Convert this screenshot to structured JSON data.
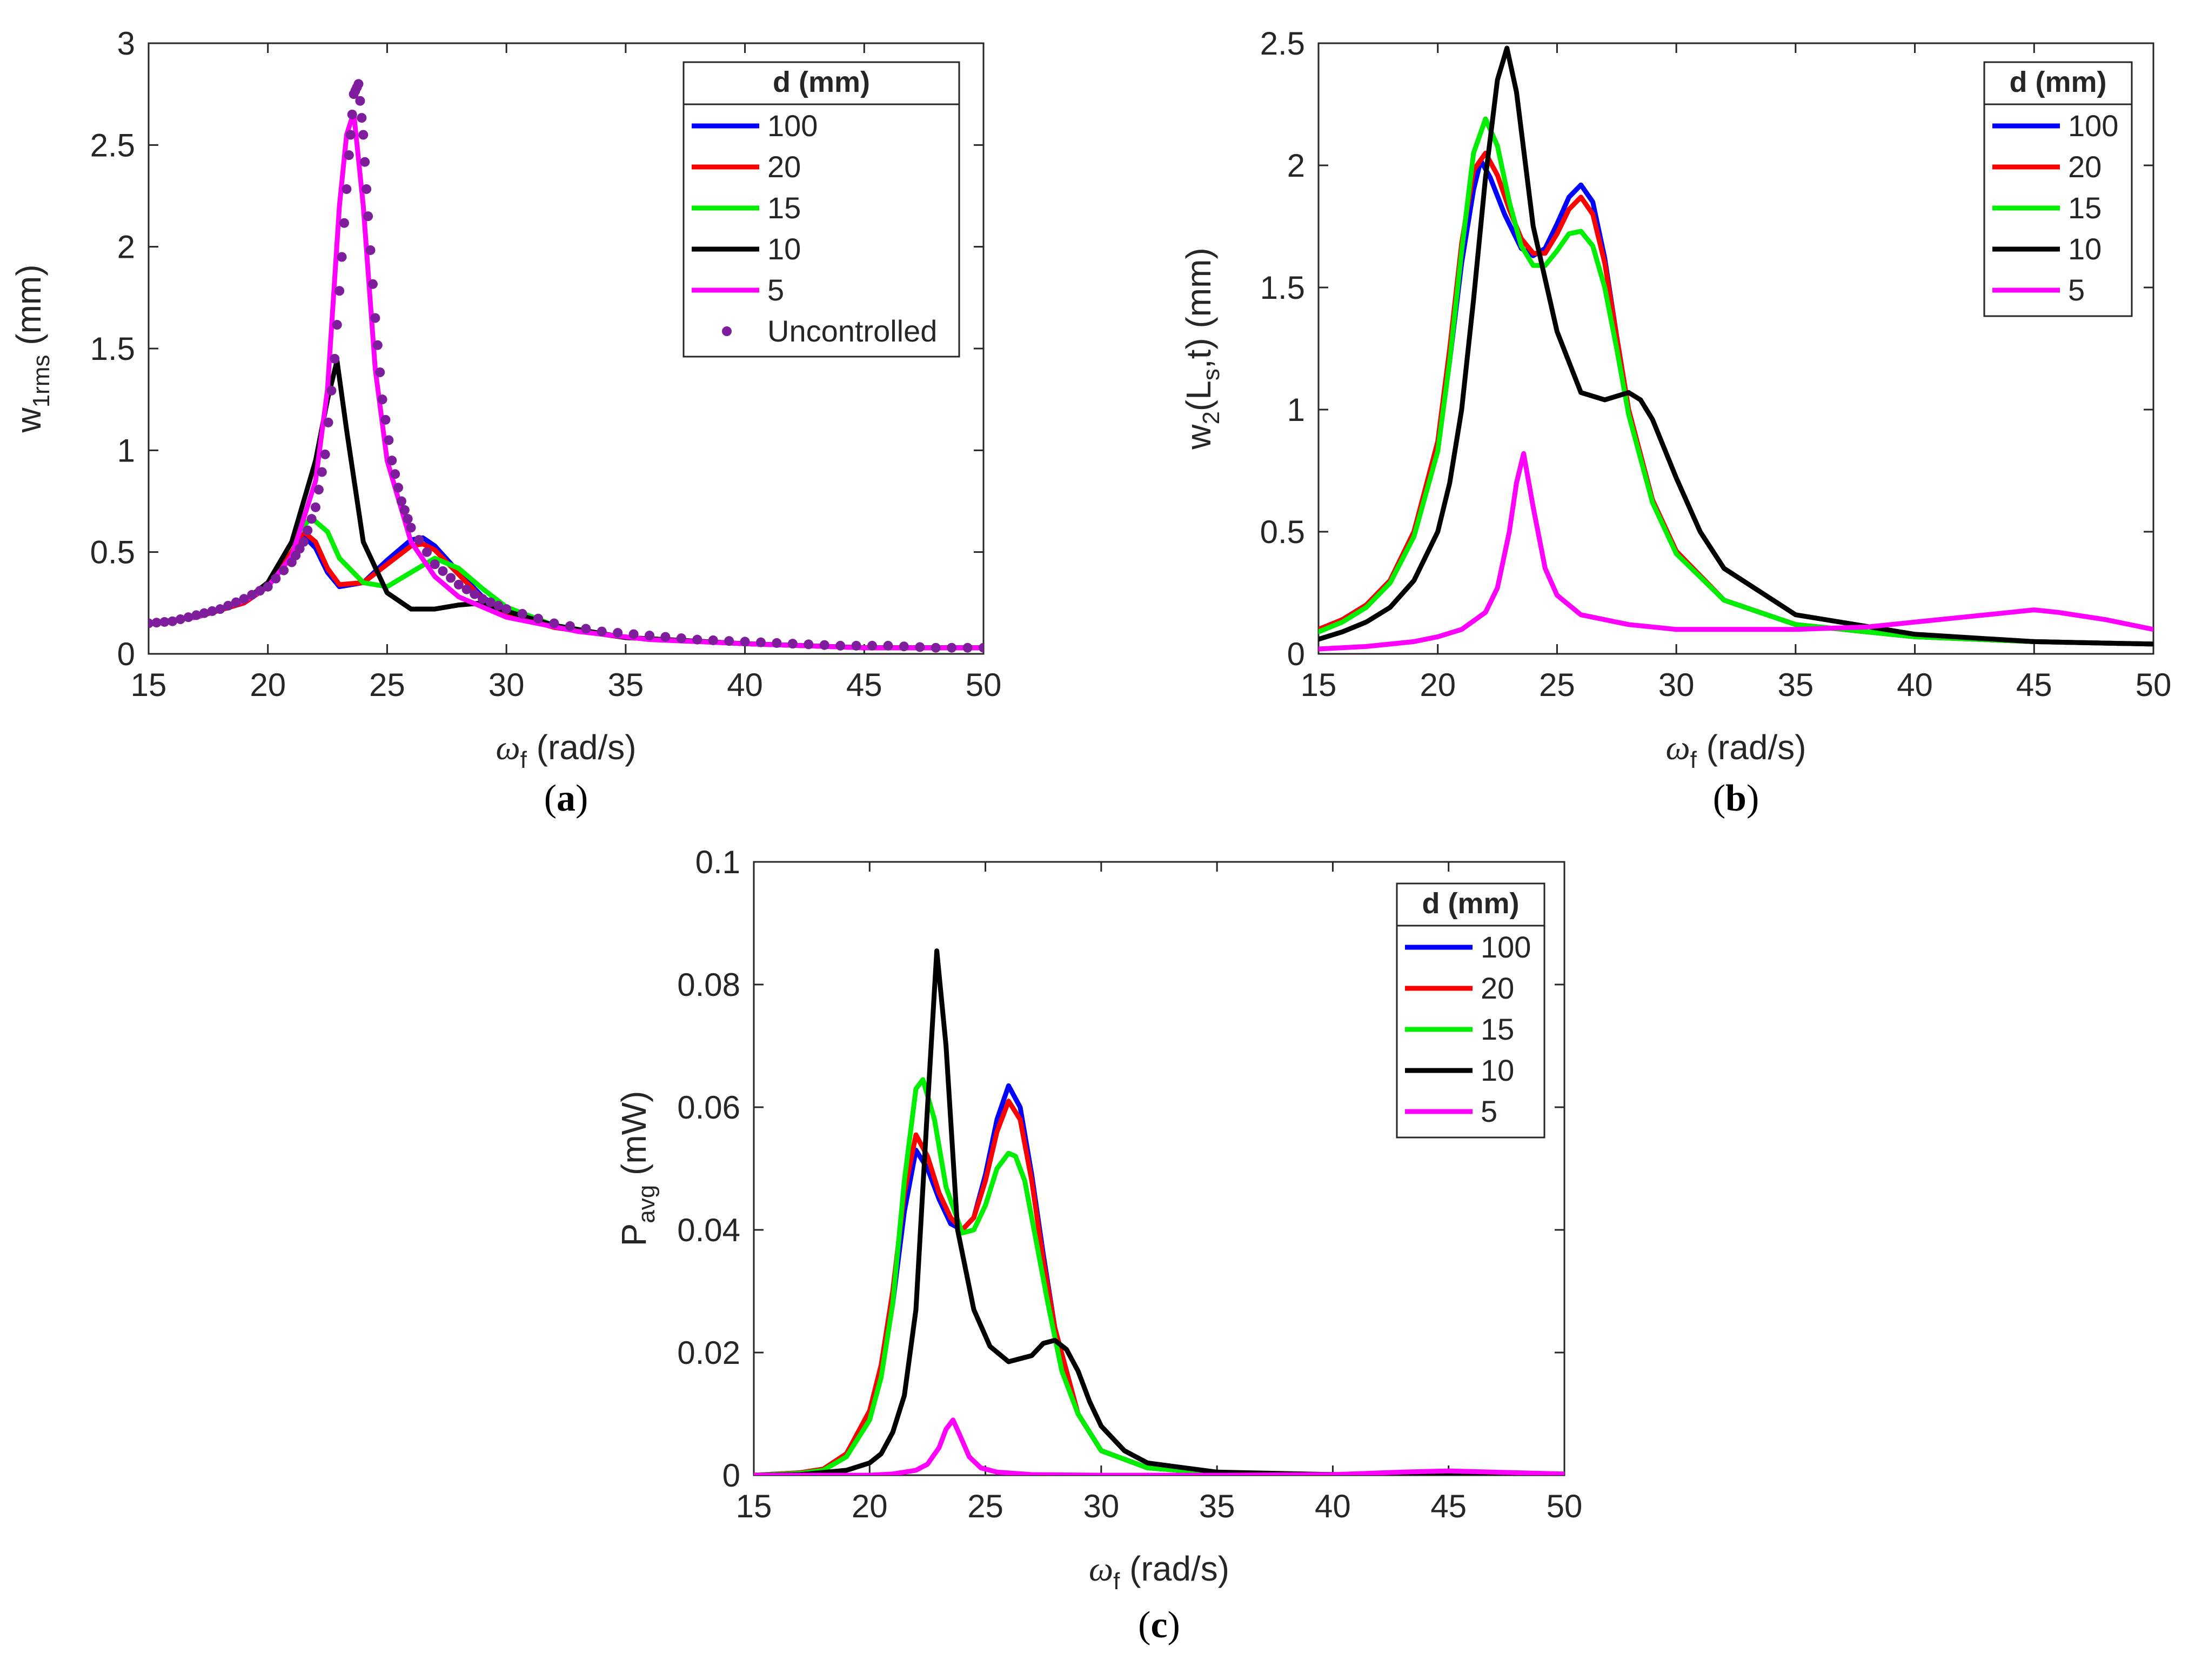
{
  "chart_data": [
    {
      "id": "a",
      "type": "line",
      "panel_label": "a",
      "xlabel_symbol": "ω",
      "xlabel_sub": "f",
      "xlabel_rest": " (rad/s)",
      "ylabel_main": "w",
      "ylabel_sub": "1rms",
      "ylabel_rest": " (mm)",
      "xlim": [
        15,
        50
      ],
      "ylim": [
        0,
        3
      ],
      "xticks": [
        "15",
        "20",
        "25",
        "30",
        "35",
        "40",
        "45",
        "50"
      ],
      "yticks": [
        "0",
        "0.5",
        "1",
        "1.5",
        "2",
        "2.5",
        "3"
      ],
      "legend": {
        "title": "d (mm)",
        "position": "top-right"
      },
      "series": [
        {
          "name": "100",
          "color": "#0000ff",
          "x": [
            15,
            17,
            19,
            20,
            21,
            21.5,
            22,
            22.5,
            23,
            24,
            25,
            26,
            26.5,
            27,
            28,
            29,
            30,
            32,
            35,
            40,
            45,
            50
          ],
          "y": [
            0.15,
            0.18,
            0.25,
            0.33,
            0.48,
            0.58,
            0.52,
            0.4,
            0.33,
            0.35,
            0.46,
            0.56,
            0.57,
            0.53,
            0.4,
            0.28,
            0.2,
            0.13,
            0.08,
            0.05,
            0.03,
            0.03
          ]
        },
        {
          "name": "20",
          "color": "#ff0000",
          "x": [
            15,
            17,
            19,
            20,
            21,
            21.5,
            22,
            22.5,
            23,
            24,
            25,
            26,
            26.5,
            27,
            28,
            29,
            30,
            32,
            35,
            40,
            45,
            50
          ],
          "y": [
            0.15,
            0.18,
            0.25,
            0.33,
            0.5,
            0.6,
            0.55,
            0.42,
            0.34,
            0.35,
            0.44,
            0.53,
            0.54,
            0.51,
            0.39,
            0.27,
            0.2,
            0.13,
            0.08,
            0.05,
            0.03,
            0.03
          ]
        },
        {
          "name": "15",
          "color": "#00ee00",
          "x": [
            15,
            17,
            19,
            20,
            21,
            21.8,
            22.5,
            23,
            24,
            25,
            26,
            27,
            28,
            29,
            30,
            32,
            35,
            40,
            45,
            50
          ],
          "y": [
            0.15,
            0.18,
            0.26,
            0.35,
            0.55,
            0.67,
            0.6,
            0.47,
            0.35,
            0.33,
            0.4,
            0.47,
            0.42,
            0.32,
            0.23,
            0.14,
            0.08,
            0.05,
            0.03,
            0.03
          ]
        },
        {
          "name": "10",
          "color": "#000000",
          "x": [
            15,
            17,
            19,
            20,
            21,
            22,
            22.5,
            22.9,
            23.3,
            24,
            25,
            26,
            27,
            28,
            29,
            30,
            32,
            35,
            40,
            45,
            50
          ],
          "y": [
            0.15,
            0.18,
            0.26,
            0.35,
            0.55,
            0.95,
            1.25,
            1.44,
            1.1,
            0.55,
            0.3,
            0.22,
            0.22,
            0.24,
            0.25,
            0.21,
            0.14,
            0.08,
            0.05,
            0.03,
            0.03
          ]
        },
        {
          "name": "5",
          "color": "#ff00ff",
          "x": [
            15,
            17,
            19,
            20,
            21,
            22,
            22.5,
            23,
            23.3,
            23.6,
            24,
            24.5,
            25,
            26,
            27,
            28,
            30,
            33,
            36,
            40,
            45,
            50
          ],
          "y": [
            0.15,
            0.18,
            0.26,
            0.33,
            0.48,
            0.85,
            1.3,
            2.2,
            2.55,
            2.66,
            2.2,
            1.4,
            0.95,
            0.55,
            0.38,
            0.28,
            0.18,
            0.11,
            0.07,
            0.05,
            0.03,
            0.03
          ]
        },
        {
          "name": "Uncontrolled",
          "color": "#7e1e9c",
          "marker": "dot",
          "x": [
            15,
            16,
            17,
            18,
            19,
            20,
            21,
            21.5,
            22,
            22.4,
            22.8,
            23.1,
            23.4,
            23.6,
            23.8,
            24,
            24.2,
            24.5,
            24.8,
            25.2,
            25.6,
            26,
            27,
            28,
            29,
            30,
            32,
            34,
            36,
            38,
            40,
            42,
            44,
            46,
            48,
            50
          ],
          "y": [
            0.15,
            0.16,
            0.19,
            0.22,
            0.27,
            0.33,
            0.45,
            0.55,
            0.72,
            0.98,
            1.45,
            1.95,
            2.45,
            2.75,
            2.8,
            2.55,
            2.15,
            1.65,
            1.25,
            0.95,
            0.75,
            0.62,
            0.44,
            0.34,
            0.27,
            0.22,
            0.15,
            0.11,
            0.09,
            0.07,
            0.06,
            0.05,
            0.04,
            0.04,
            0.03,
            0.03
          ]
        }
      ]
    },
    {
      "id": "b",
      "type": "line",
      "panel_label": "b",
      "xlabel_symbol": "ω",
      "xlabel_sub": "f",
      "xlabel_rest": " (rad/s)",
      "ylabel_main": "w",
      "ylabel_sub": "2",
      "ylabel_mid": "(L",
      "ylabel_sub2": "s",
      "ylabel_rest": ",t) (mm)",
      "xlim": [
        15,
        50
      ],
      "ylim": [
        0,
        2.5
      ],
      "xticks": [
        "15",
        "20",
        "25",
        "30",
        "35",
        "40",
        "45",
        "50"
      ],
      "yticks": [
        "0",
        "0.5",
        "1",
        "1.5",
        "2",
        "2.5"
      ],
      "legend": {
        "title": "d (mm)",
        "position": "top-right"
      },
      "series": [
        {
          "name": "100",
          "color": "#0000ff",
          "x": [
            15,
            16,
            17,
            18,
            19,
            20,
            20.5,
            21,
            21.5,
            21.8,
            22.2,
            22.8,
            23.5,
            24,
            24.5,
            25,
            25.5,
            26,
            26.5,
            27,
            27.5,
            28,
            29,
            30,
            32,
            35,
            40,
            45,
            50
          ],
          "y": [
            0.1,
            0.14,
            0.2,
            0.3,
            0.5,
            0.85,
            1.2,
            1.6,
            1.9,
            2.02,
            1.95,
            1.8,
            1.66,
            1.63,
            1.66,
            1.76,
            1.87,
            1.92,
            1.85,
            1.62,
            1.3,
            1.0,
            0.63,
            0.42,
            0.22,
            0.12,
            0.07,
            0.05,
            0.04
          ]
        },
        {
          "name": "20",
          "color": "#ff0000",
          "x": [
            15,
            16,
            17,
            18,
            19,
            20,
            20.5,
            21,
            21.5,
            22,
            22.5,
            23,
            23.5,
            24,
            24.5,
            25,
            25.5,
            26,
            26.5,
            27,
            27.5,
            28,
            29,
            30,
            32,
            35,
            40,
            45,
            50
          ],
          "y": [
            0.1,
            0.14,
            0.2,
            0.3,
            0.5,
            0.87,
            1.25,
            1.68,
            1.98,
            2.05,
            1.96,
            1.82,
            1.7,
            1.64,
            1.64,
            1.72,
            1.82,
            1.87,
            1.8,
            1.6,
            1.3,
            1.0,
            0.63,
            0.42,
            0.22,
            0.12,
            0.07,
            0.05,
            0.04
          ]
        },
        {
          "name": "15",
          "color": "#00ee00",
          "x": [
            15,
            16,
            17,
            18,
            19,
            20,
            20.5,
            21,
            21.5,
            22,
            22.5,
            23,
            23.5,
            24,
            24.5,
            25,
            25.5,
            26,
            26.5,
            27,
            27.5,
            28,
            29,
            30,
            32,
            35,
            40,
            45,
            50
          ],
          "y": [
            0.09,
            0.13,
            0.19,
            0.29,
            0.48,
            0.83,
            1.2,
            1.65,
            2.05,
            2.19,
            2.08,
            1.85,
            1.67,
            1.59,
            1.59,
            1.65,
            1.72,
            1.73,
            1.67,
            1.5,
            1.25,
            0.98,
            0.62,
            0.41,
            0.22,
            0.12,
            0.07,
            0.05,
            0.04
          ]
        },
        {
          "name": "10",
          "color": "#000000",
          "x": [
            15,
            16,
            17,
            18,
            19,
            20,
            20.5,
            21,
            21.5,
            22,
            22.5,
            22.9,
            23.3,
            24,
            25,
            26,
            27,
            28,
            28.5,
            29,
            30,
            31,
            32,
            35,
            40,
            45,
            50
          ],
          "y": [
            0.06,
            0.09,
            0.13,
            0.19,
            0.3,
            0.5,
            0.7,
            1.0,
            1.45,
            1.95,
            2.35,
            2.48,
            2.3,
            1.75,
            1.32,
            1.07,
            1.04,
            1.07,
            1.04,
            0.96,
            0.72,
            0.5,
            0.35,
            0.16,
            0.08,
            0.05,
            0.04
          ]
        },
        {
          "name": "5",
          "color": "#ff00ff",
          "x": [
            15,
            17,
            19,
            20,
            21,
            22,
            22.5,
            23,
            23.3,
            23.6,
            24,
            24.5,
            25,
            26,
            28,
            30,
            35,
            38,
            40,
            42,
            44,
            45,
            46,
            48,
            50
          ],
          "y": [
            0.02,
            0.03,
            0.05,
            0.07,
            0.1,
            0.17,
            0.27,
            0.5,
            0.7,
            0.82,
            0.6,
            0.35,
            0.24,
            0.16,
            0.12,
            0.1,
            0.1,
            0.11,
            0.13,
            0.15,
            0.17,
            0.18,
            0.17,
            0.14,
            0.1
          ]
        }
      ]
    },
    {
      "id": "c",
      "type": "line",
      "panel_label": "c",
      "xlabel_symbol": "ω",
      "xlabel_sub": "f",
      "xlabel_rest": " (rad/s)",
      "ylabel_main": "P",
      "ylabel_sub": "avg",
      "ylabel_rest": " (mW)",
      "xlim": [
        15,
        50
      ],
      "ylim": [
        0,
        0.1
      ],
      "xticks": [
        "15",
        "20",
        "25",
        "30",
        "35",
        "40",
        "45",
        "50"
      ],
      "yticks": [
        "0",
        "0.02",
        "0.04",
        "0.06",
        "0.08",
        "0.1"
      ],
      "legend": {
        "title": "d (mm)",
        "position": "top-right"
      },
      "series": [
        {
          "name": "100",
          "color": "#0000ff",
          "x": [
            15,
            17,
            18,
            19,
            20,
            20.5,
            21,
            21.5,
            22,
            22.5,
            23,
            23.5,
            24,
            24.5,
            25,
            25.5,
            26,
            26.5,
            27,
            27.5,
            28,
            29,
            30,
            32,
            35,
            40,
            45,
            50
          ],
          "y": [
            0.0,
            0.0004,
            0.001,
            0.0035,
            0.01,
            0.017,
            0.028,
            0.043,
            0.053,
            0.05,
            0.045,
            0.041,
            0.04,
            0.042,
            0.049,
            0.058,
            0.0635,
            0.06,
            0.049,
            0.036,
            0.024,
            0.01,
            0.004,
            0.0012,
            0.0003,
            0.0001,
            0.0,
            0.0
          ]
        },
        {
          "name": "20",
          "color": "#ff0000",
          "x": [
            15,
            17,
            18,
            19,
            20,
            20.5,
            21,
            21.5,
            22,
            22.5,
            23,
            23.5,
            24,
            24.5,
            25,
            25.5,
            26,
            26.5,
            27,
            27.5,
            28,
            29,
            30,
            32,
            35,
            40,
            45,
            50
          ],
          "y": [
            0.0,
            0.0004,
            0.001,
            0.0035,
            0.0105,
            0.018,
            0.03,
            0.046,
            0.0555,
            0.052,
            0.046,
            0.042,
            0.04,
            0.042,
            0.048,
            0.056,
            0.061,
            0.058,
            0.048,
            0.035,
            0.024,
            0.01,
            0.004,
            0.0012,
            0.0003,
            0.0001,
            0.0,
            0.0
          ]
        },
        {
          "name": "15",
          "color": "#00ee00",
          "x": [
            15,
            17,
            18,
            19,
            20,
            20.5,
            21,
            21.5,
            22,
            22.3,
            22.8,
            23.3,
            24,
            24.5,
            25,
            25.5,
            26,
            26.3,
            26.7,
            27.2,
            27.7,
            28.3,
            29,
            30,
            32,
            35,
            40,
            45,
            50
          ],
          "y": [
            0.0,
            0.0003,
            0.0008,
            0.003,
            0.009,
            0.016,
            0.028,
            0.048,
            0.063,
            0.0645,
            0.058,
            0.047,
            0.0395,
            0.04,
            0.044,
            0.05,
            0.0525,
            0.052,
            0.048,
            0.038,
            0.028,
            0.017,
            0.01,
            0.004,
            0.0012,
            0.0003,
            0.0001,
            0.0,
            0.0
          ]
        },
        {
          "name": "10",
          "color": "#000000",
          "x": [
            15,
            17,
            19,
            20,
            20.5,
            21,
            21.5,
            22,
            22.5,
            22.9,
            23.3,
            23.8,
            24.5,
            25.2,
            26,
            27,
            27.5,
            28,
            28.5,
            29,
            29.5,
            30,
            31,
            32,
            35,
            40,
            45,
            50
          ],
          "y": [
            0.0,
            0.0001,
            0.0008,
            0.002,
            0.0035,
            0.007,
            0.013,
            0.027,
            0.06,
            0.0855,
            0.07,
            0.04,
            0.027,
            0.021,
            0.0185,
            0.0195,
            0.0215,
            0.022,
            0.0205,
            0.017,
            0.012,
            0.008,
            0.004,
            0.002,
            0.0005,
            0.0001,
            0.0,
            0.0
          ]
        },
        {
          "name": "5",
          "color": "#ff00ff",
          "x": [
            15,
            20,
            21,
            22,
            22.5,
            23,
            23.3,
            23.6,
            23.9,
            24.3,
            24.8,
            25.5,
            27,
            30,
            35,
            40,
            43,
            45,
            46,
            48,
            50
          ],
          "y": [
            0.0,
            0.0,
            0.0002,
            0.0008,
            0.0018,
            0.0045,
            0.0075,
            0.009,
            0.0065,
            0.003,
            0.0012,
            0.0005,
            0.0001,
            0.0,
            0.0,
            0.0001,
            0.0005,
            0.0007,
            0.0006,
            0.0004,
            0.0002
          ]
        }
      ]
    }
  ]
}
